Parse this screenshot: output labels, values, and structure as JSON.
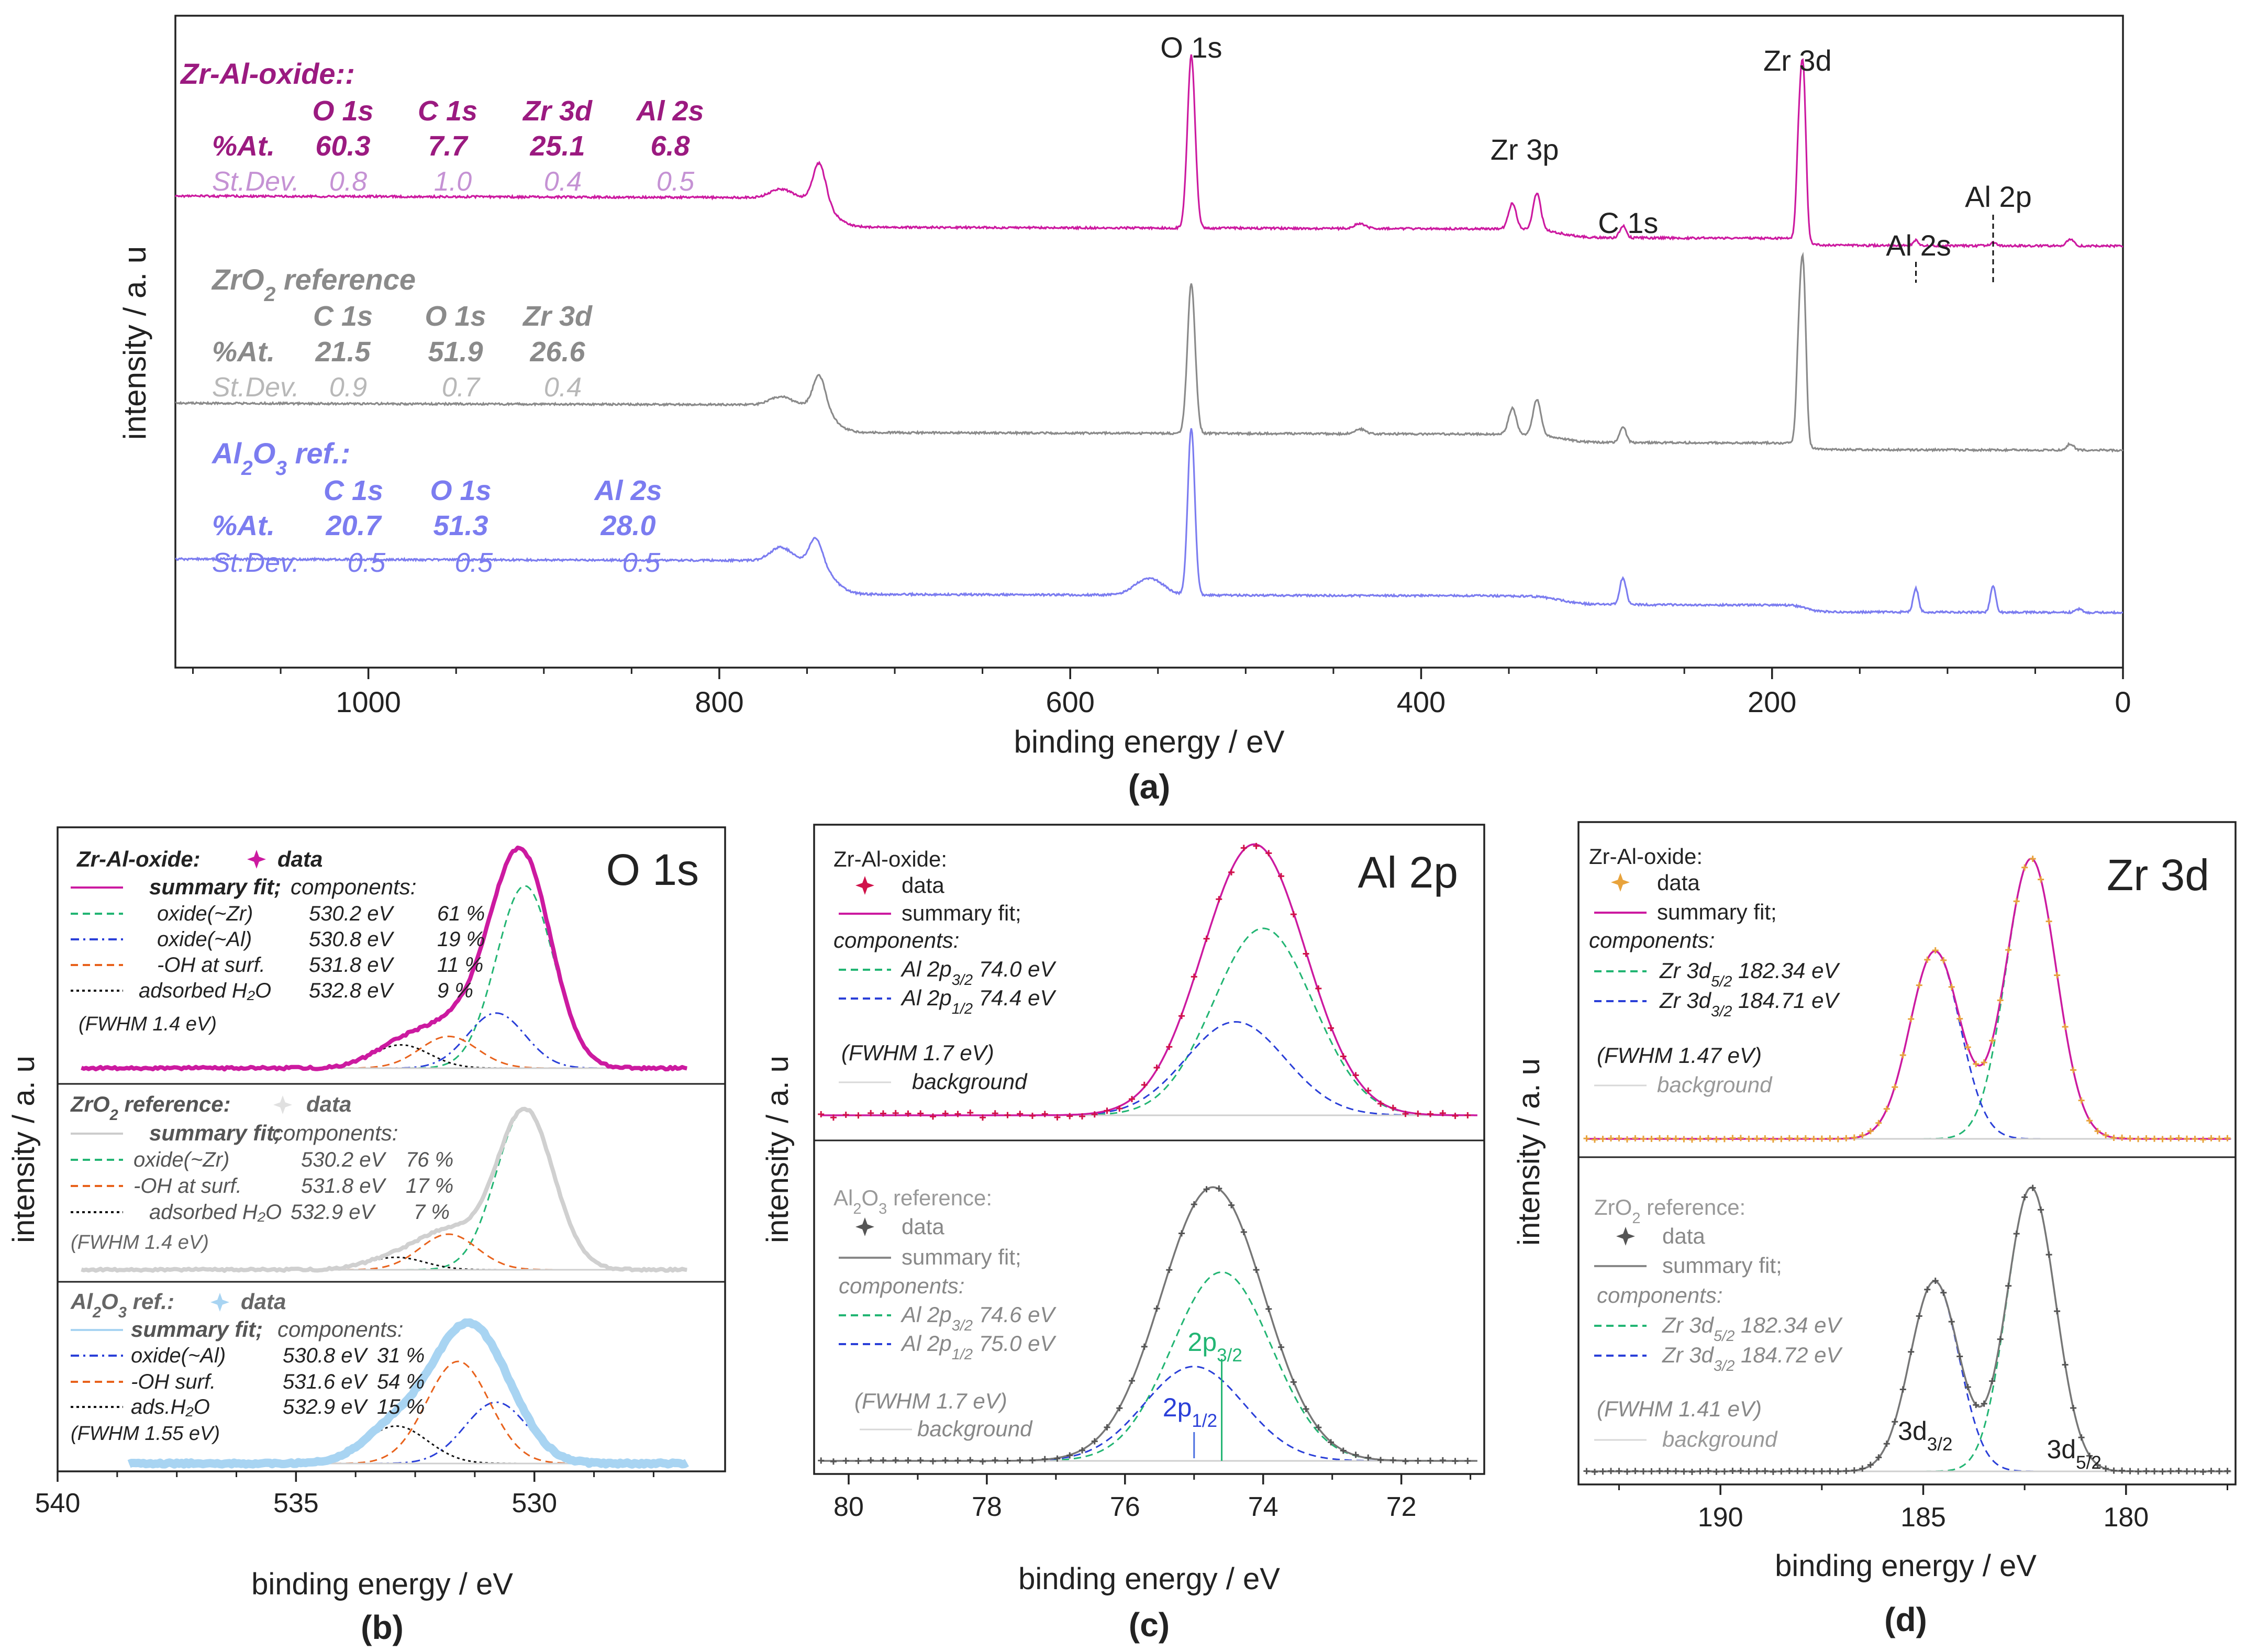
{
  "colors": {
    "zral": "#cc1aa0",
    "zral_text": "#9b1a80",
    "zral_std": "#c592d4",
    "zro2": "#8a8a8a",
    "zro2_std": "#b8b8b8",
    "al2o3": "#7b7cf0",
    "al2o3_light": "#a8d4f2",
    "green": "#22b573",
    "blue": "#2a3fd8",
    "orange": "#e8621c",
    "black": "#111111",
    "dark": "#555555",
    "axis": "#222222"
  },
  "chart_data": [
    {
      "id": "a",
      "type": "line",
      "panel_label": "(a)",
      "xlabel": "binding energy  / eV",
      "ylabel": "intensity  / a. u",
      "xlim": [
        1110,
        0
      ],
      "x_ticks": [
        "1000",
        "800",
        "600",
        "400",
        "200",
        "0"
      ],
      "x_tick_values": [
        1000,
        800,
        600,
        400,
        200,
        0
      ],
      "series": [
        {
          "name": "Zr-Al-oxide",
          "baseline": 0.62,
          "drop": 0.17,
          "peaks": [
            [
              531,
              1.0,
              2.2
            ],
            [
              743,
              0.22,
              3.5
            ],
            [
              765,
              0.05,
              6
            ],
            [
              348,
              0.15,
              2.2
            ],
            [
              334,
              0.21,
              2.2
            ],
            [
              285,
              0.07,
              1.8
            ],
            [
              182,
              0.85,
              1.5
            ],
            [
              184.5,
              0.6,
              1.5
            ],
            [
              118,
              0.03,
              1.5
            ],
            [
              74,
              0.02,
              1.5
            ],
            [
              30,
              0.04,
              2
            ],
            [
              435,
              0.03,
              3
            ]
          ]
        },
        {
          "name": "ZrO2 reference",
          "baseline": 0.62,
          "drop": 0.17,
          "peaks": [
            [
              531,
              0.92,
              2.2
            ],
            [
              743,
              0.2,
              3.5
            ],
            [
              765,
              0.05,
              6
            ],
            [
              348,
              0.16,
              2.2
            ],
            [
              334,
              0.22,
              2.2
            ],
            [
              285,
              0.1,
              1.8
            ],
            [
              182,
              0.95,
              1.5
            ],
            [
              184.5,
              0.65,
              1.5
            ],
            [
              30,
              0.04,
              2
            ],
            [
              435,
              0.03,
              3
            ]
          ]
        },
        {
          "name": "Al2O3 ref.",
          "baseline": 0.62,
          "drop": 0.2,
          "peaks": [
            [
              531,
              1.0,
              2.0
            ],
            [
              745,
              0.15,
              3.5
            ],
            [
              765,
              0.08,
              6
            ],
            [
              555,
              0.1,
              8
            ],
            [
              285,
              0.16,
              1.8
            ],
            [
              118,
              0.14,
              1.5
            ],
            [
              74,
              0.16,
              1.5
            ],
            [
              25,
              0.02,
              2
            ]
          ]
        }
      ],
      "peak_labels": [
        {
          "text": "O 1s",
          "x": 531
        },
        {
          "text": "Zr 3p",
          "x": 341
        },
        {
          "text": "C 1s",
          "x": 285
        },
        {
          "text": "Zr 3d",
          "x": 184
        },
        {
          "text": "Al 2s",
          "x": 118
        },
        {
          "text": "Al 2p",
          "x": 74
        }
      ],
      "tables": [
        {
          "name": "Zr-Al-oxide::",
          "headers": [
            "O 1s",
            "C 1s",
            "Zr 3d",
            "Al 2s"
          ],
          "at_label": "%At.",
          "at": [
            "60.3",
            "7.7",
            "25.1",
            "6.8"
          ],
          "sd_label": "St.Dev.",
          "sd": [
            "0.8",
            "1.0",
            "0.4",
            "0.5"
          ]
        },
        {
          "name_main": "ZrO",
          "name_sub": "2",
          "name_rest": " reference",
          "headers": [
            "C 1s",
            "O 1s",
            "Zr 3d"
          ],
          "at_label": "%At.",
          "at": [
            "21.5",
            "51.9",
            "26.6"
          ],
          "sd_label": "St.Dev.",
          "sd": [
            "0.9",
            "0.7",
            "0.4"
          ]
        },
        {
          "name_a": "Al",
          "name_sub1": "2",
          "name_b": "O",
          "name_sub2": "3",
          "name_rest": " ref.:",
          "headers": [
            "C 1s",
            "O 1s",
            "Al 2s"
          ],
          "at_label": "%At.",
          "at": [
            "20.7",
            "51.3",
            "28.0"
          ],
          "sd_label": "St.Dev.",
          "sd": [
            "0.5",
            "0.5",
            "0.5"
          ]
        }
      ]
    },
    {
      "id": "b",
      "type": "line",
      "panel_label": "(b)",
      "title": "O 1s",
      "xlabel": "binding energy  / eV",
      "ylabel": "intensity  / a. u",
      "xlim": [
        540,
        526
      ],
      "x_ticks": [
        "540",
        "535",
        "530"
      ],
      "x_tick_values": [
        540,
        535,
        530
      ],
      "blocks": [
        {
          "name": "Zr-Al-oxide:",
          "data_label": "data",
          "summary": "summary fit;",
          "components_label": "components:",
          "components": [
            {
              "label": "oxide(~Zr)",
              "energy": "530.2 eV",
              "pct": "61 %",
              "center": 530.2,
              "amp": 0.86,
              "sigma": 0.6
            },
            {
              "label": "oxide(~Al)",
              "energy": "530.8 eV",
              "pct": "19 %",
              "center": 530.8,
              "amp": 0.26,
              "sigma": 0.6
            },
            {
              "label": "-OH at surf.",
              "energy": "531.8 eV",
              "pct": "11 %",
              "center": 531.8,
              "amp": 0.15,
              "sigma": 0.6
            },
            {
              "label": "adsorbed H₂O",
              "energy": "532.8 eV",
              "pct": "9 %",
              "center": 532.8,
              "amp": 0.11,
              "sigma": 0.6
            }
          ],
          "fwhm": "(FWHM 1.4 eV)"
        },
        {
          "name_main": "ZrO",
          "name_sub": "2",
          "name_rest": " reference:",
          "data_label": "data",
          "summary": "summary fit;",
          "components_label": "components:",
          "components": [
            {
              "label": "oxide(~Zr)",
              "energy": "530.2 eV",
              "pct": "76 %",
              "center": 530.2,
              "amp": 0.9,
              "sigma": 0.6
            },
            {
              "label": "-OH at surf.",
              "energy": "531.8 eV",
              "pct": "17 %",
              "center": 531.8,
              "amp": 0.2,
              "sigma": 0.6
            },
            {
              "label": "adsorbed H₂O",
              "energy": "532.9 eV",
              "pct": "7 %",
              "center": 532.9,
              "amp": 0.07,
              "sigma": 0.6
            }
          ],
          "fwhm": "(FWHM 1.4 eV)"
        },
        {
          "name_a": "Al",
          "name_sub1": "2",
          "name_b": "O",
          "name_sub2": "3",
          "name_rest": " ref.:",
          "data_label": "data",
          "summary": "summary fit;",
          "components_label": "components:",
          "components": [
            {
              "label": "oxide(~Al)",
              "energy": "530.8 eV",
              "pct": "31 %",
              "center": 530.8,
              "amp": 0.36,
              "sigma": 0.66
            },
            {
              "label": "-OH surf.",
              "energy": "531.6 eV",
              "pct": "54 %",
              "center": 531.6,
              "amp": 0.6,
              "sigma": 0.66
            },
            {
              "label": "ads.H₂O",
              "energy": "532.9 eV",
              "pct": "15 %",
              "center": 532.9,
              "amp": 0.22,
              "sigma": 0.66
            }
          ],
          "fwhm": "(FWHM 1.55 eV)"
        }
      ]
    },
    {
      "id": "c",
      "type": "line",
      "panel_label": "(c)",
      "title": "Al 2p",
      "xlabel": "binding energy  / eV",
      "ylabel": "intensity  / a. u",
      "xlim": [
        80.5,
        70.8
      ],
      "x_ticks": [
        "80",
        "78",
        "76",
        "74",
        "72"
      ],
      "x_tick_values": [
        80,
        78,
        76,
        74,
        72
      ],
      "blocks": [
        {
          "name": "Zr-Al-oxide:",
          "data_label": "data",
          "summary": "summary fit;",
          "components_label": "components:",
          "components": [
            {
              "label": "Al 2p",
              "sub": "3/2",
              "energy": "74.0 eV",
              "center": 74.0,
              "amp": 0.7,
              "sigma": 0.72
            },
            {
              "label": "Al 2p",
              "sub": "1/2",
              "energy": "74.4 eV",
              "center": 74.4,
              "amp": 0.35,
              "sigma": 0.72
            }
          ],
          "fwhm": "(FWHM 1.7 eV)",
          "background": "background"
        },
        {
          "name_a": "Al",
          "name_sub1": "2",
          "name_b": "O",
          "name_sub2": "3",
          "name_rest": " reference:",
          "data_label": "data",
          "summary": "summary fit;",
          "components_label": "components:",
          "components": [
            {
              "label": "Al 2p",
              "sub": "3/2",
              "energy": "74.6 eV",
              "center": 74.6,
              "amp": 0.7,
              "sigma": 0.72
            },
            {
              "label": "Al 2p",
              "sub": "1/2",
              "energy": "75.0 eV",
              "center": 75.0,
              "amp": 0.35,
              "sigma": 0.72
            }
          ],
          "fwhm": "(FWHM 1.7 eV)",
          "background": "background",
          "markers": [
            {
              "text": "2p",
              "sub": "3/2",
              "x": 74.6
            },
            {
              "text": "2p",
              "sub": "1/2",
              "x": 75.0
            }
          ]
        }
      ]
    },
    {
      "id": "d",
      "type": "line",
      "panel_label": "(d)",
      "title": "Zr 3d",
      "xlabel": "binding energy  / eV",
      "ylabel": "intensity  / a. u",
      "xlim": [
        193.5,
        177.3
      ],
      "x_ticks": [
        "190",
        "185",
        "180"
      ],
      "x_tick_values": [
        190,
        185,
        180
      ],
      "blocks": [
        {
          "name": "Zr-Al-oxide:",
          "data_label": "data",
          "summary": "summary fit;",
          "components_label": "components:",
          "components": [
            {
              "label": "Zr 3d",
              "sub": "5/2",
              "energy": "182.34 eV",
              "center": 182.34,
              "amp": 1.0,
              "sigma": 0.62
            },
            {
              "label": "Zr 3d",
              "sub": "3/2",
              "energy": "184.71 eV",
              "center": 184.71,
              "amp": 0.67,
              "sigma": 0.62
            }
          ],
          "fwhm": "(FWHM 1.47 eV)",
          "background": "background"
        },
        {
          "name_main": "ZrO",
          "name_sub": "2",
          "name_rest": " reference:",
          "data_label": "data",
          "summary": "summary fit;",
          "components_label": "components:",
          "components": [
            {
              "label": "Zr 3d",
              "sub": "5/2",
              "energy": "182.34 eV",
              "center": 182.34,
              "amp": 1.0,
              "sigma": 0.6
            },
            {
              "label": "Zr 3d",
              "sub": "3/2",
              "energy": "184.72 eV",
              "center": 184.72,
              "amp": 0.67,
              "sigma": 0.6
            }
          ],
          "fwhm": "(FWHM 1.41 eV)",
          "background": "background",
          "markers": [
            {
              "text": "3d",
              "sub": "3/2",
              "x": 184.72
            },
            {
              "text": "3d",
              "sub": "5/2",
              "x": 182.34
            }
          ]
        }
      ]
    }
  ]
}
